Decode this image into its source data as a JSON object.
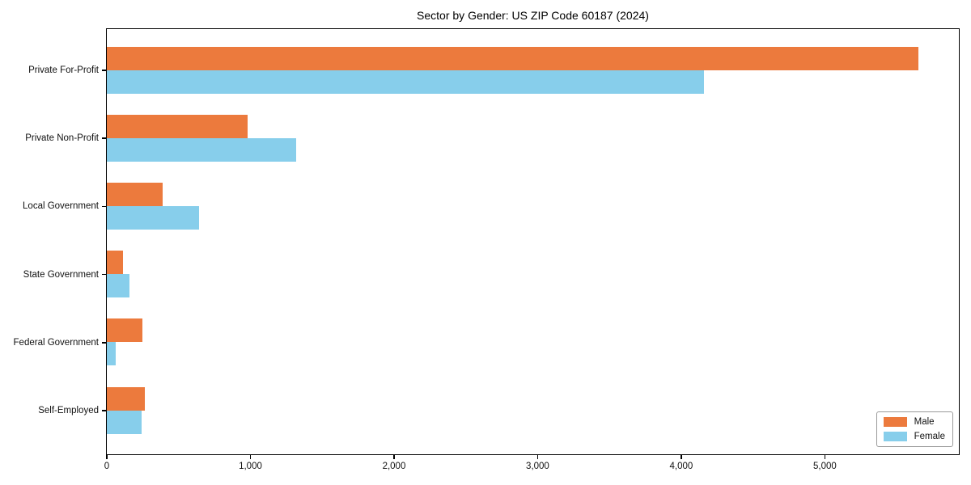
{
  "title": "Sector by Gender: US ZIP Code 60187 (2024)",
  "chart_data": {
    "type": "bar",
    "orientation": "horizontal",
    "title": "Sector by Gender: US ZIP Code 60187 (2024)",
    "categories": [
      "Private For-Profit",
      "Private Non-Profit",
      "Local Government",
      "State Government",
      "Federal Government",
      "Self-Employed"
    ],
    "series": [
      {
        "name": "Male",
        "color": "#EC7A3D",
        "values": [
          5650,
          980,
          390,
          110,
          250,
          265
        ]
      },
      {
        "name": "Female",
        "color": "#87CEEB",
        "values": [
          4160,
          1320,
          640,
          160,
          60,
          240
        ]
      }
    ],
    "xlabel": "",
    "ylabel": "",
    "x_ticks": [
      "0",
      "1,000",
      "2,000",
      "3,000",
      "4,000",
      "5,000"
    ],
    "x_tick_values": [
      0,
      1000,
      2000,
      3000,
      4000,
      5000
    ],
    "xlim": [
      0,
      5933
    ],
    "grid": false,
    "legend_position": "lower right",
    "background_color": "#ffffff",
    "axis_color": "#000000"
  }
}
